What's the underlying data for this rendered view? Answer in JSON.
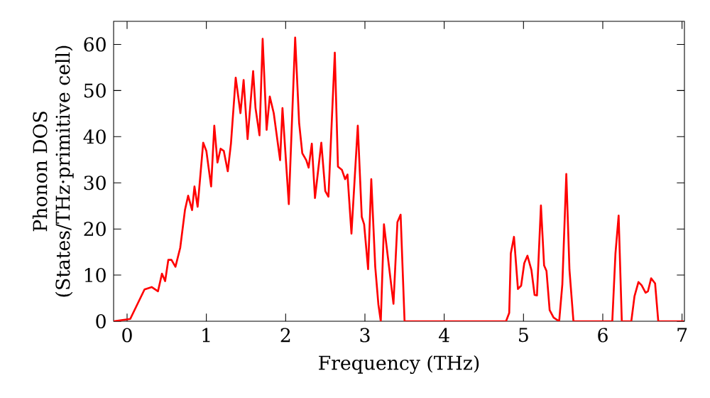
{
  "chart_data": {
    "type": "line",
    "xlabel": "Frequency (THz)",
    "ylabel": "Phonon DOS\n(States/THz·primitive cell)",
    "xlim": [
      -0.17,
      7.03
    ],
    "ylim": [
      0,
      65
    ],
    "xticks": [
      0,
      1,
      2,
      3,
      4,
      5,
      6,
      7
    ],
    "yticks": [
      0,
      10,
      20,
      30,
      40,
      50,
      60
    ],
    "grid": false,
    "marker": "none",
    "line_style": "solid",
    "series": [
      {
        "color": "#ff0000",
        "x": [
          -0.17,
          0.04,
          0.22,
          0.31,
          0.39,
          0.44,
          0.48,
          0.52,
          0.56,
          0.61,
          0.67,
          0.73,
          0.77,
          0.82,
          0.85,
          0.89,
          0.96,
          1.0,
          1.06,
          1.1,
          1.14,
          1.18,
          1.22,
          1.27,
          1.31,
          1.37,
          1.43,
          1.47,
          1.52,
          1.59,
          1.62,
          1.67,
          1.71,
          1.76,
          1.8,
          1.85,
          1.93,
          1.96,
          2.04,
          2.12,
          2.17,
          2.21,
          2.26,
          2.29,
          2.33,
          2.37,
          2.45,
          2.5,
          2.54,
          2.62,
          2.66,
          2.71,
          2.75,
          2.78,
          2.83,
          2.91,
          2.96,
          2.99,
          3.04,
          3.08,
          3.13,
          3.17,
          3.2,
          3.24,
          3.36,
          3.41,
          3.45,
          3.5,
          4.78,
          4.82,
          4.84,
          4.88,
          4.93,
          4.97,
          5.01,
          5.05,
          5.1,
          5.14,
          5.17,
          5.22,
          5.26,
          5.29,
          5.33,
          5.38,
          5.45,
          5.49,
          5.54,
          5.58,
          5.63,
          6.12,
          6.16,
          6.2,
          6.24,
          6.36,
          6.4,
          6.45,
          6.49,
          6.54,
          6.57,
          6.61,
          6.66,
          6.7,
          7.02
        ],
        "values": [
          0,
          0.5,
          6.9,
          7.4,
          6.5,
          10.3,
          8.7,
          13.3,
          13.3,
          11.8,
          15.9,
          24.1,
          27.2,
          24.1,
          29.2,
          24.8,
          38.7,
          36.9,
          29.2,
          42.4,
          34.4,
          37.4,
          36.9,
          32.5,
          38.5,
          52.8,
          45.1,
          52.3,
          39.5,
          54.2,
          46.2,
          40.3,
          61.2,
          41.5,
          48.7,
          45.1,
          34.9,
          46.2,
          25.4,
          61.5,
          43,
          36.4,
          34.9,
          33.3,
          38.5,
          26.7,
          38.7,
          28.2,
          27,
          58.2,
          33.5,
          32.8,
          30.8,
          31.8,
          19,
          42.4,
          22.6,
          21,
          11.3,
          30.8,
          11.8,
          3.6,
          0,
          21,
          3.8,
          21.5,
          23.1,
          0,
          0,
          1.8,
          14.7,
          18.3,
          7,
          7.7,
          12.6,
          14.2,
          11.1,
          5.7,
          5.6,
          25.1,
          12.1,
          10.9,
          2.4,
          0.8,
          0,
          8,
          31.9,
          11.1,
          0,
          0,
          14.7,
          22.9,
          0,
          0,
          5.4,
          8.5,
          7.8,
          6.2,
          6.5,
          9.3,
          8.2,
          0,
          0
        ]
      }
    ]
  }
}
